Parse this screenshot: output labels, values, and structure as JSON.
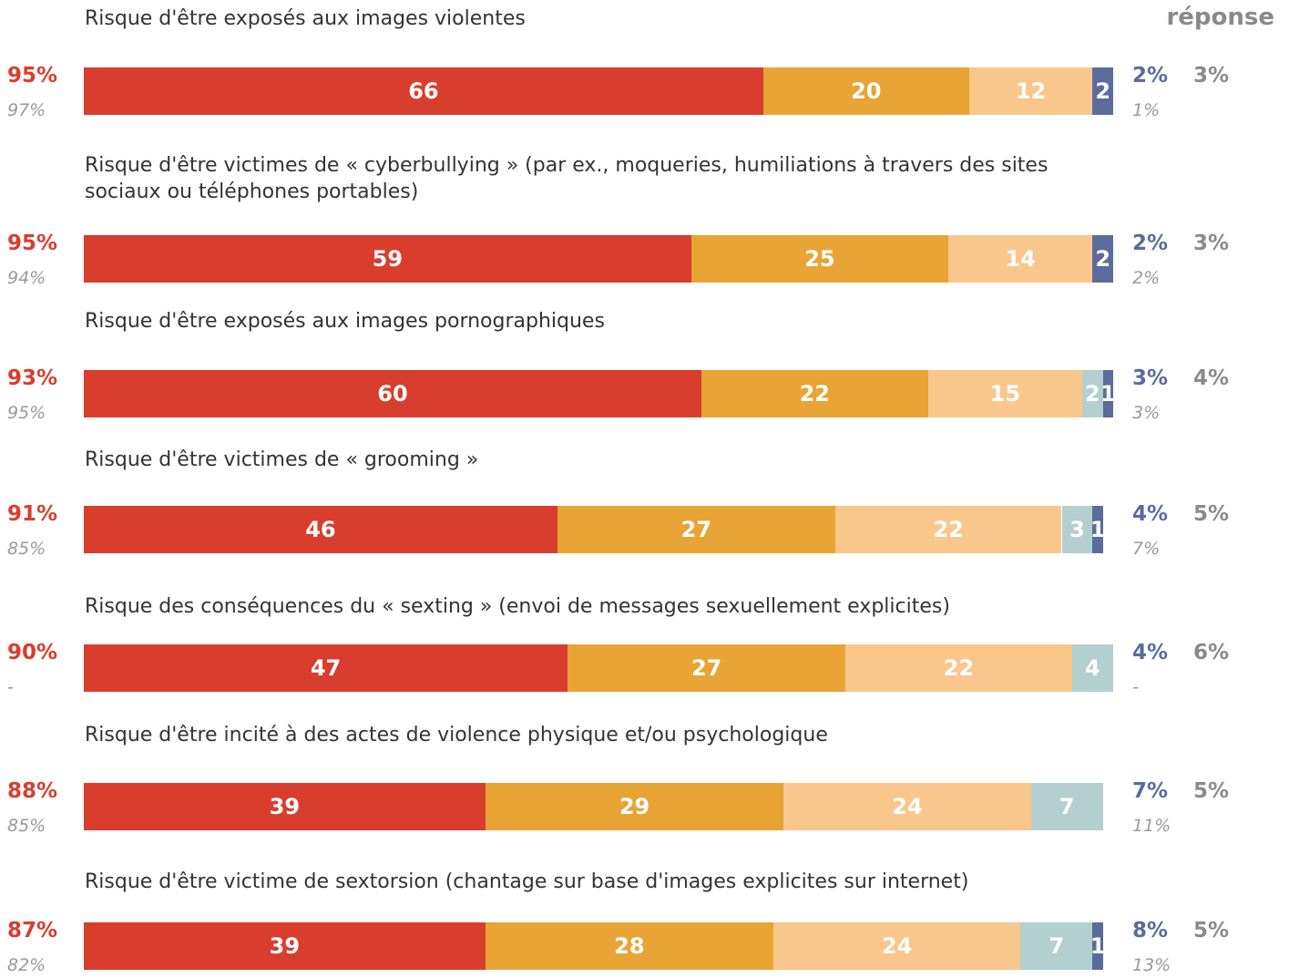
{
  "chart_data": {
    "type": "bar",
    "orientation": "horizontal",
    "stacked": true,
    "column_header": "réponse",
    "categories": [
      "Risque d'être exposés aux images violentes",
      "Risque d'être victimes de « cyberbullying » (par ex., moqueries, humiliations à travers des sites sociaux ou  téléphones portables)",
      "Risque d'être exposés aux images pornographiques",
      "Risque d'être victimes de « grooming »",
      "Risque des conséquences du « sexting » (envoi de messages sexuellement explicites)",
      "Risque d'être incité à des actes de violence physique et/ou psychologique",
      "Risque d'être victime de sextorsion (chantage sur base d'images explicites sur internet)"
    ],
    "xlim": [
      0,
      100
    ],
    "series": [
      {
        "color": "#d93d2e",
        "values": [
          66,
          59,
          60,
          46,
          47,
          39,
          39
        ]
      },
      {
        "color": "#e8a434",
        "values": [
          20,
          25,
          22,
          27,
          27,
          29,
          28
        ]
      },
      {
        "color": "#f9c78b",
        "values": [
          12,
          14,
          15,
          22,
          22,
          24,
          24
        ]
      },
      {
        "color": "#b3cfcf",
        "values": [
          null,
          null,
          2,
          3,
          4,
          7,
          7
        ]
      },
      {
        "color": "#5b6b9c",
        "values": [
          2,
          2,
          1,
          1,
          null,
          null,
          1
        ]
      }
    ],
    "left_totals": {
      "color": "#d93d2e",
      "values": [
        95,
        95,
        93,
        91,
        90,
        88,
        87
      ],
      "value_labels": [
        "95%",
        "95%",
        "93%",
        "91%",
        "90%",
        "88%",
        "87%"
      ]
    },
    "left_previous": {
      "values": [
        97,
        94,
        95,
        85,
        null,
        85,
        82
      ],
      "value_labels": [
        "97%",
        "94%",
        "95%",
        "85%",
        "-",
        "85%",
        "82%"
      ]
    },
    "right_totals": {
      "color": "#5b6b9c",
      "values": [
        2,
        2,
        3,
        4,
        4,
        7,
        8
      ],
      "value_labels": [
        "2%",
        "2%",
        "3%",
        "4%",
        "4%",
        "7%",
        "8%"
      ]
    },
    "right_previous": {
      "values": [
        1,
        2,
        3,
        7,
        null,
        11,
        13
      ],
      "value_labels": [
        "1%",
        "2%",
        "3%",
        "7%",
        "-",
        "11%",
        "13%"
      ]
    },
    "no_answer": {
      "values": [
        3,
        3,
        4,
        5,
        6,
        5,
        5
      ],
      "value_labels": [
        "3%",
        "3%",
        "4%",
        "5%",
        "6%",
        "5%",
        "5%"
      ]
    }
  }
}
